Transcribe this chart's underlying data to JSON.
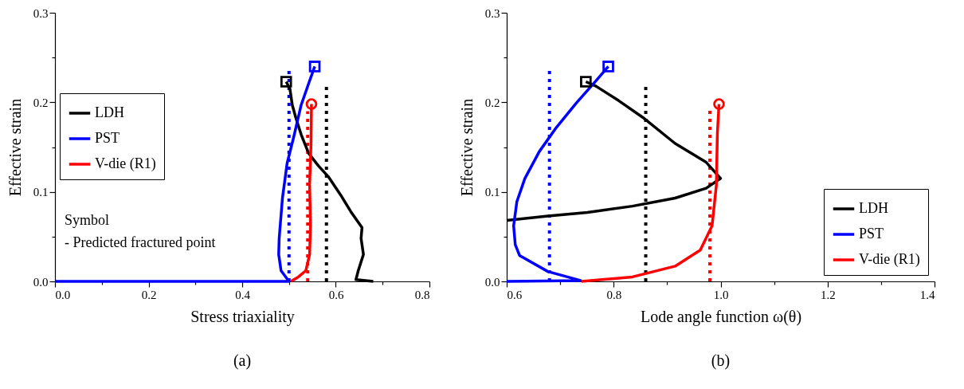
{
  "chart_data": [
    {
      "type": "line",
      "title": "(a)",
      "xlabel": "Stress triaxiality",
      "ylabel": "Effective strain",
      "xlim": [
        0,
        0.8
      ],
      "ylim": [
        0,
        0.3
      ],
      "xticks": [
        {
          "value": 0,
          "label": "0.0"
        },
        {
          "value": 0.1,
          "label": null
        },
        0.2,
        {
          "value": 0.3,
          "label": null
        },
        0.4,
        {
          "value": 0.5,
          "label": null
        },
        0.6,
        {
          "value": 0.7,
          "label": null
        },
        0.8
      ],
      "yticks": [
        {
          "value": 0,
          "label": "0.0"
        },
        {
          "value": 0.05,
          "label": null
        },
        0.1,
        {
          "value": 0.15,
          "label": null
        },
        0.2,
        {
          "value": 0.25,
          "label": null
        },
        0.3
      ],
      "legend": "left",
      "annotations": [
        "Symbol",
        "- Predicted fractured point"
      ],
      "series": [
        {
          "line_style": "dotted",
          "color": "#0000ff",
          "x": [
            0.5,
            0.5
          ],
          "values": [
            0,
            0.237
          ]
        },
        {
          "line_style": "dotted",
          "color": "#ff0000",
          "x": [
            0.54,
            0.54
          ],
          "values": [
            0,
            0.19
          ]
        },
        {
          "line_style": "dotted",
          "color": "#000000",
          "x": [
            0.58,
            0.58
          ],
          "values": [
            0,
            0.221
          ]
        },
        {
          "name": "LDH",
          "line_style": "solid",
          "color": "#000000",
          "x": [
            0.68,
            0.643,
            0.648,
            0.659,
            0.654,
            0.656,
            0.632,
            0.611,
            0.584,
            0.563,
            0.542,
            0.526,
            0.515,
            0.507,
            0.502,
            0.494
          ],
          "values": [
            0,
            0.002,
            0.012,
            0.03,
            0.048,
            0.06,
            0.078,
            0.096,
            0.117,
            0.129,
            0.143,
            0.164,
            0.182,
            0.197,
            0.215,
            0.223
          ]
        },
        {
          "name": "PST",
          "line_style": "solid",
          "color": "#0000ff",
          "x": [
            0,
            0.5,
            0.483,
            0.478,
            0.479,
            0.486,
            0.496,
            0.51,
            0.526,
            0.542,
            0.555
          ],
          "values": [
            0,
            0,
            0.012,
            0.03,
            0.048,
            0.093,
            0.132,
            0.161,
            0.197,
            0.221,
            0.24
          ]
        },
        {
          "name": "V-die (R1)",
          "line_style": "solid",
          "color": "#ff0000",
          "x": [
            0.504,
            0.52,
            0.536,
            0.544,
            0.546,
            0.544,
            0.547,
            0.548
          ],
          "values": [
            0,
            0.005,
            0.012,
            0.03,
            0.063,
            0.108,
            0.152,
            0.198
          ]
        },
        {
          "type": "scatter",
          "marker": "square",
          "color": "#000000",
          "x": [
            0.494
          ],
          "values": [
            0.223
          ]
        },
        {
          "type": "scatter",
          "marker": "square",
          "color": "#0000ff",
          "x": [
            0.555
          ],
          "values": [
            0.24
          ]
        },
        {
          "type": "scatter",
          "marker": "circle",
          "color": "#ff0000",
          "x": [
            0.548
          ],
          "values": [
            0.198
          ]
        }
      ]
    },
    {
      "type": "line",
      "title": "(b)",
      "xlabel": "Lode angle function ω(θ)",
      "ylabel": "Effective strain",
      "xlim": [
        0.6,
        1.4
      ],
      "ylim": [
        0,
        0.3
      ],
      "xticks": [
        0.6,
        {
          "value": 0.7,
          "label": null
        },
        0.8,
        {
          "value": 0.9,
          "label": null
        },
        {
          "value": 1,
          "label": "1.0"
        },
        {
          "value": 1.1,
          "label": null
        },
        1.2,
        {
          "value": 1.3,
          "label": null
        },
        1.4
      ],
      "yticks": [
        {
          "value": 0,
          "label": "0.0"
        },
        {
          "value": 0.05,
          "label": null
        },
        0.1,
        {
          "value": 0.15,
          "label": null
        },
        0.2,
        {
          "value": 0.25,
          "label": null
        },
        0.3
      ],
      "legend": "bottom right",
      "series": [
        {
          "line_style": "dotted",
          "color": "#0000ff",
          "x": [
            0.68,
            0.68
          ],
          "values": [
            0,
            0.236
          ]
        },
        {
          "line_style": "dotted",
          "color": "#000000",
          "x": [
            0.86,
            0.86
          ],
          "values": [
            0,
            0.221
          ]
        },
        {
          "line_style": "dotted",
          "color": "#ff0000",
          "x": [
            0.98,
            0.98
          ],
          "values": [
            0,
            0.191
          ]
        },
        {
          "name": "LDH",
          "line_style": "solid",
          "color": "#000000",
          "x": [
            0.6,
            0.677,
            0.751,
            0.835,
            0.915,
            0.973,
            1.0,
            0.973,
            0.915,
            0.857,
            0.809,
            0.767,
            0.748
          ],
          "values": [
            0.068,
            0.073,
            0.077,
            0.084,
            0.093,
            0.104,
            0.115,
            0.133,
            0.154,
            0.182,
            0.202,
            0.218,
            0.223
          ]
        },
        {
          "name": "PST",
          "line_style": "solid",
          "color": "#0000ff",
          "x": [
            0.6,
            0.738,
            0.677,
            0.624,
            0.616,
            0.613,
            0.619,
            0.634,
            0.661,
            0.693,
            0.73,
            0.767,
            0.79
          ],
          "values": [
            0,
            0.001,
            0.011,
            0.029,
            0.041,
            0.062,
            0.089,
            0.115,
            0.145,
            0.172,
            0.199,
            0.224,
            0.24
          ]
        },
        {
          "name": "V-die (R1)",
          "line_style": "solid",
          "color": "#ff0000",
          "x": [
            0.74,
            0.835,
            0.915,
            0.962,
            0.984,
            0.992,
            0.994,
            0.997
          ],
          "values": [
            0,
            0.005,
            0.017,
            0.035,
            0.062,
            0.107,
            0.166,
            0.198
          ]
        },
        {
          "type": "scatter",
          "marker": "square",
          "color": "#000000",
          "x": [
            0.748
          ],
          "values": [
            0.223
          ]
        },
        {
          "type": "scatter",
          "marker": "square",
          "color": "#0000ff",
          "x": [
            0.79
          ],
          "values": [
            0.24
          ]
        },
        {
          "type": "scatter",
          "marker": "circle",
          "color": "#ff0000",
          "x": [
            0.997
          ],
          "values": [
            0.198
          ]
        }
      ]
    }
  ]
}
